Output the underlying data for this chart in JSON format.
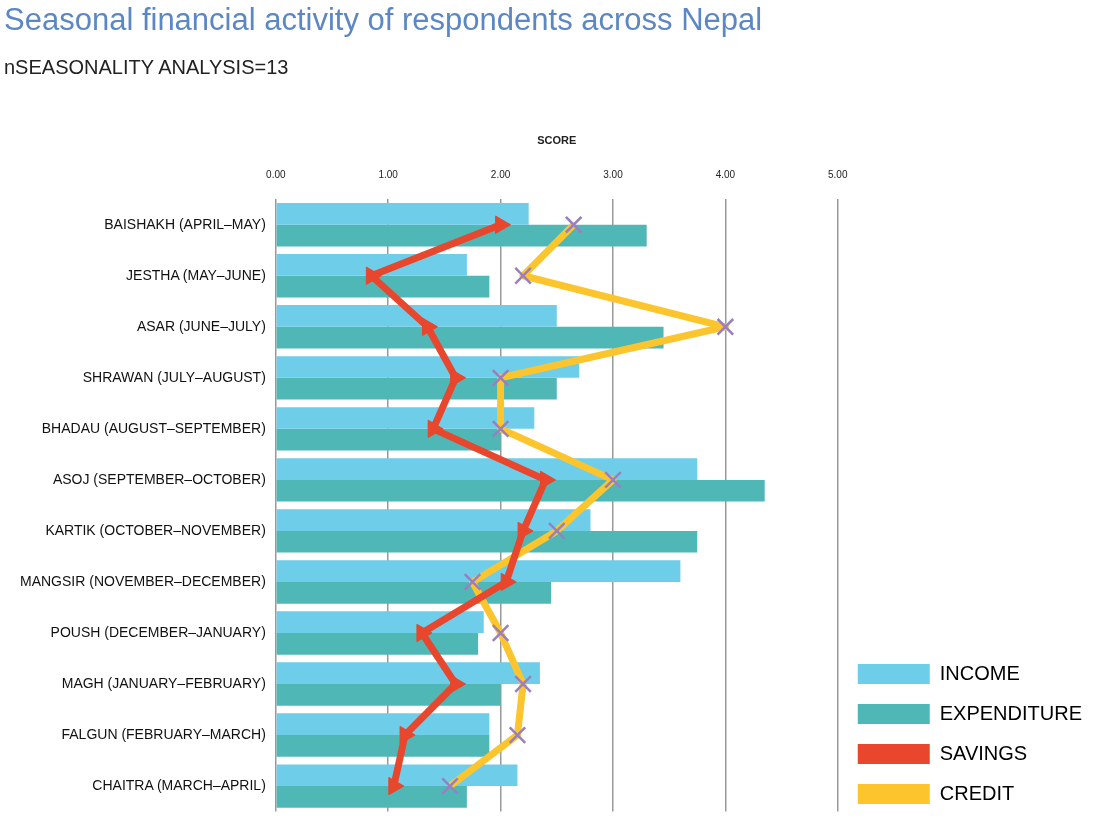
{
  "chart_data": {
    "type": "bar",
    "orientation": "horizontal",
    "title": "Seasonal financial activity of respondents across Nepal",
    "subtitle": "nSEASONALITY ANALYSIS=13",
    "xlabel": "SCORE",
    "categories": [
      "BAISHAKH (APRIL–MAY)",
      "JESTHA (MAY–JUNE)",
      "ASAR (JUNE–JULY)",
      "SHRAWAN (JULY–AUGUST)",
      "BHADAU (AUGUST–SEPTEMBER)",
      "ASOJ (SEPTEMBER–OCTOBER)",
      "KARTIK (OCTOBER–NOVEMBER)",
      "MANGSIR (NOVEMBER–DECEMBER)",
      "POUSH (DECEMBER–JANUARY)",
      "MAGH (JANUARY–FEBRUARY)",
      "FALGUN (FEBRUARY–MARCH)",
      "CHAITRA (MARCH–APRIL)"
    ],
    "series": [
      {
        "name": "INCOME",
        "color": "#6ecde8",
        "values": [
          2.25,
          1.7,
          2.5,
          2.7,
          2.3,
          3.75,
          2.8,
          3.6,
          1.85,
          2.35,
          1.9,
          2.15
        ]
      },
      {
        "name": "EXPENDITURE",
        "color": "#4fb8b7",
        "values": [
          3.3,
          1.9,
          3.45,
          2.5,
          2.0,
          4.35,
          3.75,
          2.45,
          1.8,
          2.0,
          1.9,
          1.7
        ]
      },
      {
        "name": "SAVINGS",
        "type": "line",
        "marker": "triangle",
        "color": "#e8462d",
        "values": [
          2.0,
          0.85,
          1.35,
          1.6,
          1.4,
          2.4,
          2.2,
          2.05,
          1.3,
          1.6,
          1.15,
          1.05
        ]
      },
      {
        "name": "CREDIT",
        "type": "line",
        "marker": "cross",
        "color": "#fcc52d",
        "values": [
          2.65,
          2.2,
          4.0,
          2.0,
          2.0,
          3.0,
          2.5,
          1.75,
          2.0,
          2.2,
          2.15,
          1.55
        ]
      }
    ],
    "xlim": [
      0,
      5
    ],
    "xticks": [
      {
        "value": 0,
        "label": "0.00"
      },
      {
        "value": 1,
        "label": "1.00"
      },
      {
        "value": 2,
        "label": "2.00"
      },
      {
        "value": 3,
        "label": "3.00"
      },
      {
        "value": 4,
        "label": "4.00"
      },
      {
        "value": 5,
        "label": "5.00"
      }
    ],
    "grid": "x",
    "legend": "bottom right"
  }
}
